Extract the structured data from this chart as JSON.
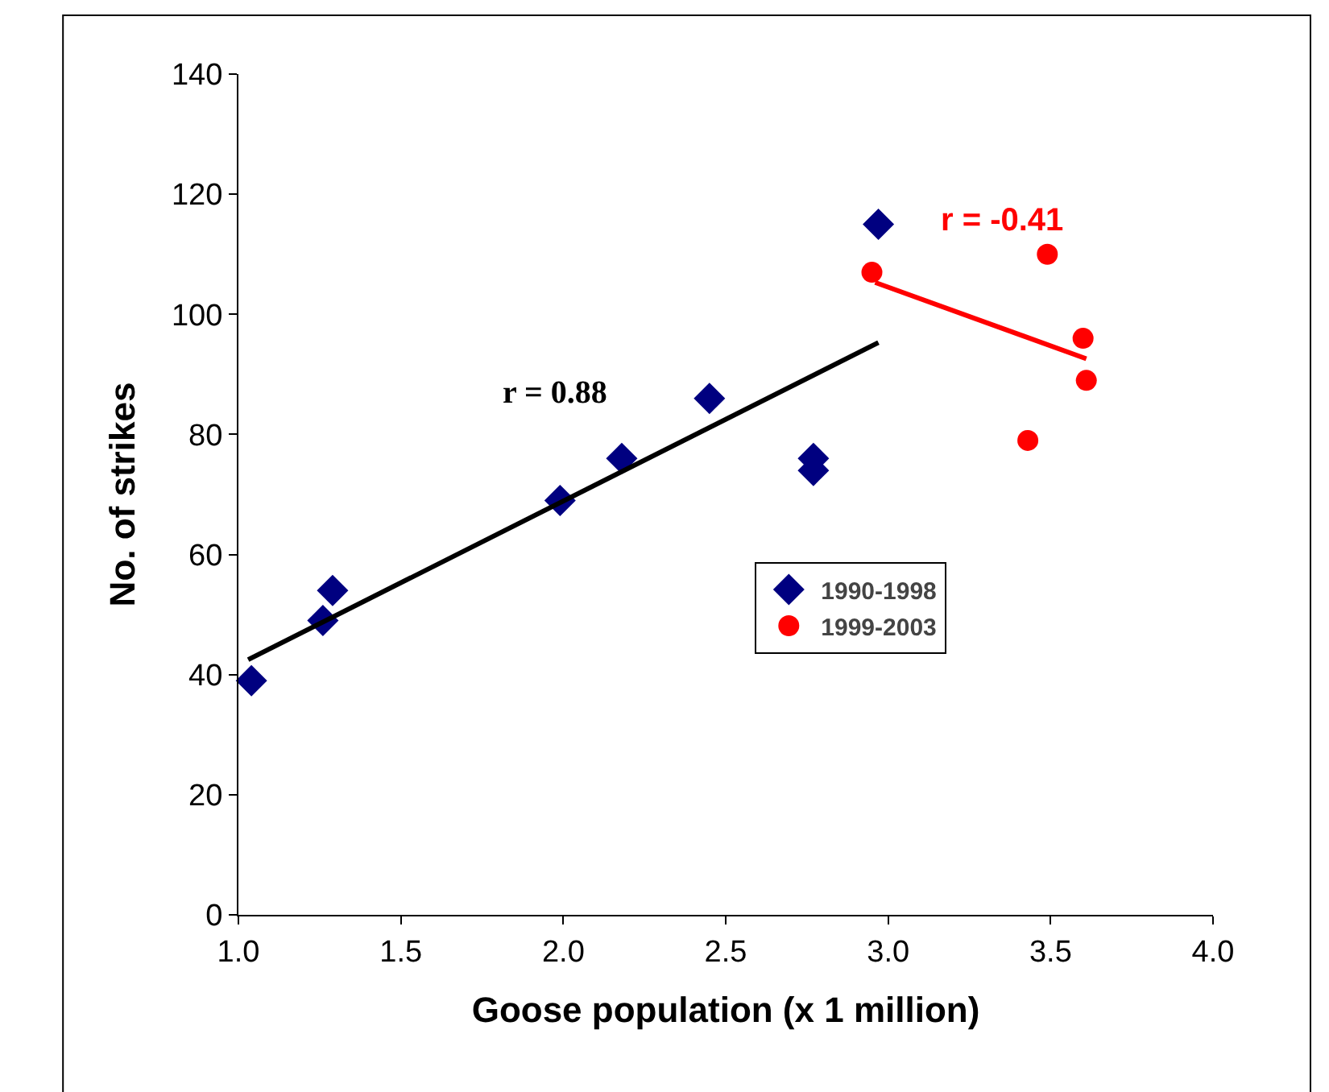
{
  "chart_data": {
    "type": "scatter",
    "xlabel": "Goose population (x 1 million)",
    "ylabel": "No. of strikes",
    "xlim": [
      1.0,
      4.0
    ],
    "xticks": [
      {
        "value": 1.0,
        "label": "1.0"
      },
      {
        "value": 1.5,
        "label": "1.5"
      },
      {
        "value": 2.0,
        "label": "2.0"
      },
      {
        "value": 2.5,
        "label": "2.5"
      },
      {
        "value": 3.0,
        "label": "3.0"
      },
      {
        "value": 3.5,
        "label": "3.5"
      },
      {
        "value": 4.0,
        "label": "4.0"
      }
    ],
    "ylim": [
      0,
      140
    ],
    "yticks": [
      0,
      20,
      40,
      60,
      80,
      100,
      120,
      140
    ],
    "grid": false,
    "legend": "center",
    "series": [
      {
        "name": "1990-1998",
        "color": "#000080",
        "marker": "diamond",
        "x": [
          1.04,
          1.26,
          1.29,
          1.99,
          2.18,
          2.45,
          2.77,
          2.77,
          2.97
        ],
        "values": [
          39,
          49,
          54,
          69,
          76,
          86,
          76,
          74,
          115
        ]
      },
      {
        "name": "1999-2003",
        "color": "#ff0000",
        "marker": "circle",
        "x": [
          2.95,
          3.49,
          3.6,
          3.61,
          3.43
        ],
        "values": [
          107,
          110,
          96,
          89,
          79
        ]
      },
      {
        "type": "line",
        "color": "#000000",
        "marker": "none",
        "x": [
          1.03,
          2.97
        ],
        "values": [
          42.5,
          95.3
        ]
      },
      {
        "type": "line",
        "color": "#ff0000",
        "marker": "none",
        "x": [
          2.96,
          3.61
        ],
        "values": [
          105.3,
          92.6
        ]
      }
    ],
    "annotations": [
      "r = 0.88",
      "r = -0.41"
    ]
  }
}
